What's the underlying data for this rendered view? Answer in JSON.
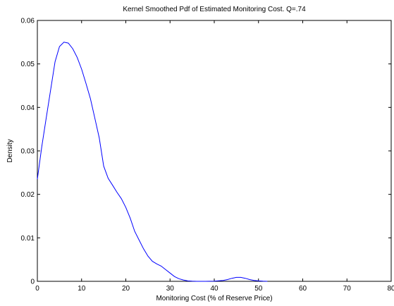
{
  "chart_data": {
    "type": "line",
    "title": "Kernel Smoothed Pdf of Estimated Monitoring Cost. Q=.74",
    "xlabel": "Monitoring Cost (% of Reserve Price)",
    "ylabel": "Density",
    "xlim": [
      0,
      80
    ],
    "ylim": [
      0,
      0.06
    ],
    "xticks": [
      0,
      10,
      20,
      30,
      40,
      50,
      60,
      70,
      80
    ],
    "yticks": [
      0,
      0.01,
      0.02,
      0.03,
      0.04,
      0.05,
      0.06
    ],
    "xtick_labels": [
      "0",
      "10",
      "20",
      "30",
      "40",
      "50",
      "60",
      "70",
      "80"
    ],
    "ytick_labels": [
      "0",
      "0.01",
      "0.02",
      "0.03",
      "0.04",
      "0.05",
      "0.06"
    ],
    "grid": false,
    "line_color": "#0000ff",
    "series": [
      {
        "x": [
          0,
          1,
          2,
          3,
          4,
          5,
          6,
          7,
          8,
          9,
          10,
          11,
          12,
          13,
          14,
          15,
          16,
          17,
          18,
          19,
          20,
          21,
          22,
          23,
          24,
          25,
          26,
          27,
          28,
          29,
          30,
          31,
          32,
          33,
          34,
          35,
          36,
          38,
          40,
          42,
          43,
          44,
          45,
          46,
          47,
          48,
          49,
          50,
          51,
          52
        ],
        "y": [
          0.0235,
          0.031,
          0.0375,
          0.044,
          0.0505,
          0.054,
          0.055,
          0.0548,
          0.0535,
          0.0515,
          0.0488,
          0.0455,
          0.042,
          0.0375,
          0.033,
          0.0265,
          0.0237,
          0.0221,
          0.0205,
          0.019,
          0.017,
          0.0145,
          0.0115,
          0.0095,
          0.0075,
          0.0058,
          0.0046,
          0.004,
          0.0035,
          0.0027,
          0.0019,
          0.0011,
          0.0006,
          0.0003,
          0.0001,
          3e-05,
          0.0,
          0.0,
          5e-05,
          0.0002,
          0.0004,
          0.0007,
          0.0009,
          0.0009,
          0.0007,
          0.0004,
          0.0002,
          0.0001,
          3e-05,
          0.0
        ]
      }
    ]
  }
}
